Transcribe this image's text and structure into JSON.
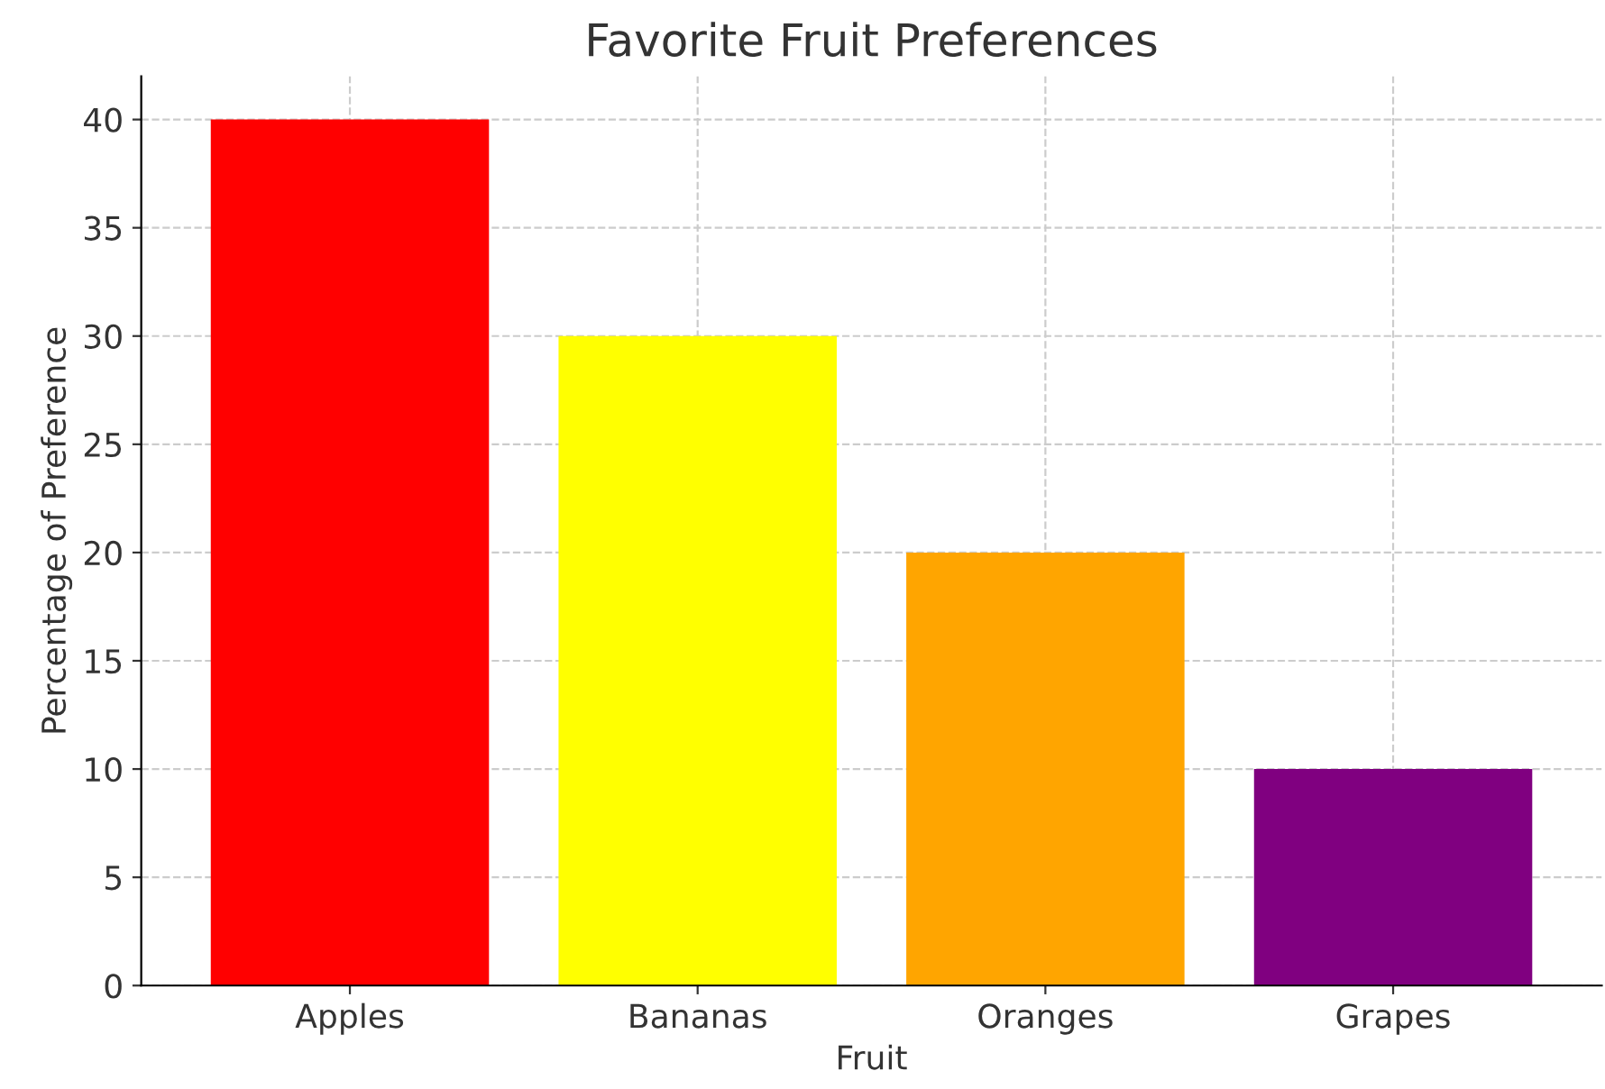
{
  "chart_data": {
    "type": "bar",
    "title": "Favorite Fruit Preferences",
    "xlabel": "Fruit",
    "ylabel": "Percentage of Preference",
    "categories": [
      "Apples",
      "Bananas",
      "Oranges",
      "Grapes"
    ],
    "values": [
      40,
      30,
      20,
      10
    ],
    "colors": [
      "#ff0000",
      "#ffff00",
      "#ffa500",
      "#800080"
    ],
    "ylim": [
      0,
      42
    ],
    "yticks": [
      0,
      5,
      10,
      15,
      20,
      25,
      30,
      35,
      40
    ],
    "grid": true
  }
}
